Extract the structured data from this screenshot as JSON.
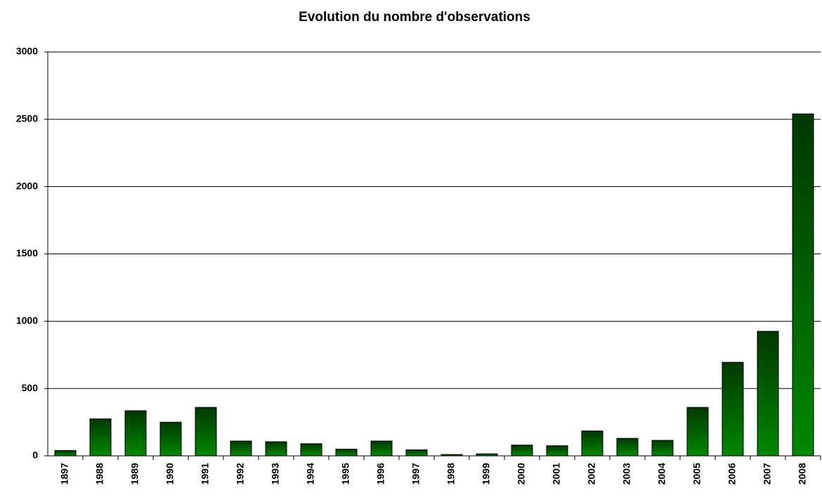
{
  "chart_data": {
    "type": "bar",
    "title": "Evolution du nombre d'observations",
    "categories": [
      "1897",
      "1988",
      "1989",
      "1990",
      "1991",
      "1992",
      "1993",
      "1994",
      "1995",
      "1996",
      "1997",
      "1998",
      "1999",
      "2000",
      "2001",
      "2002",
      "2003",
      "2004",
      "2005",
      "2006",
      "2007",
      "2008"
    ],
    "values": [
      40,
      275,
      335,
      250,
      360,
      110,
      105,
      90,
      50,
      110,
      45,
      10,
      15,
      80,
      75,
      185,
      130,
      115,
      360,
      695,
      925,
      2540
    ],
    "color": "#008800",
    "ylim": [
      0,
      3000
    ],
    "yticks": [
      0,
      500,
      1000,
      1500,
      2000,
      2500,
      3000
    ],
    "grid": true
  }
}
